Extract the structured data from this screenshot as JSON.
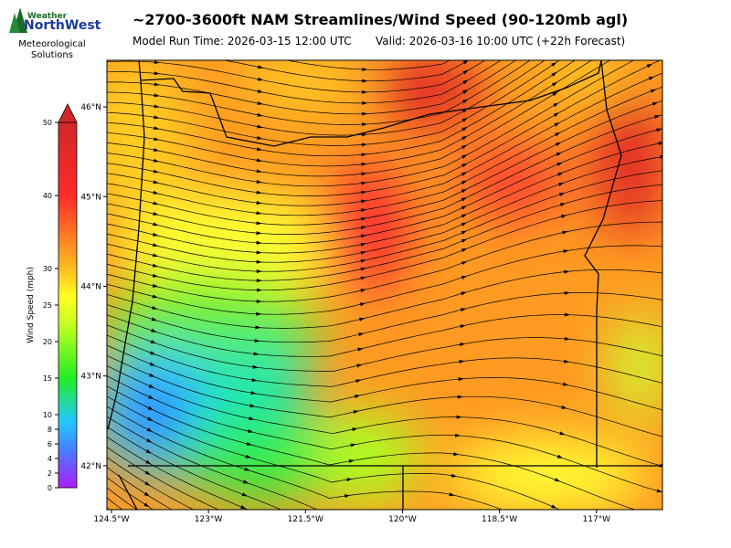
{
  "logo": {
    "top": "Weather",
    "brand": "NorthWest",
    "tagline": "Meteorological Solutions"
  },
  "header": {
    "title": "~2700-3600ft NAM Streamlines/Wind Speed (90-120mb agl)",
    "run": "Model Run Time: 2026-03-15 12:00 UTC",
    "valid": "Valid: 2026-03-16 10:00 UTC  (+22h Forecast)"
  },
  "colorbar": {
    "label": "Wind Speed (mph)",
    "lim": [
      0,
      50
    ],
    "ticks": [
      0,
      2,
      4,
      6,
      8,
      10,
      15,
      20,
      25,
      30,
      40,
      50
    ]
  },
  "map": {
    "xlim": [
      -124.57,
      -115.98
    ],
    "ylim": [
      41.51,
      46.52
    ],
    "xticks": [
      {
        "value": -124.5,
        "label": "124.5°W"
      },
      {
        "value": -123,
        "label": "123°W"
      },
      {
        "value": -121.5,
        "label": "121.5°W"
      },
      {
        "value": -120,
        "label": "120°W"
      },
      {
        "value": -118.5,
        "label": "118.5°W"
      },
      {
        "value": -117,
        "label": "117°W"
      }
    ],
    "yticks": [
      {
        "value": 42,
        "label": "42°N"
      },
      {
        "value": 43,
        "label": "43°N"
      },
      {
        "value": 44,
        "label": "44°N"
      },
      {
        "value": 45,
        "label": "45°N"
      },
      {
        "value": 46,
        "label": "46°N"
      }
    ]
  }
}
